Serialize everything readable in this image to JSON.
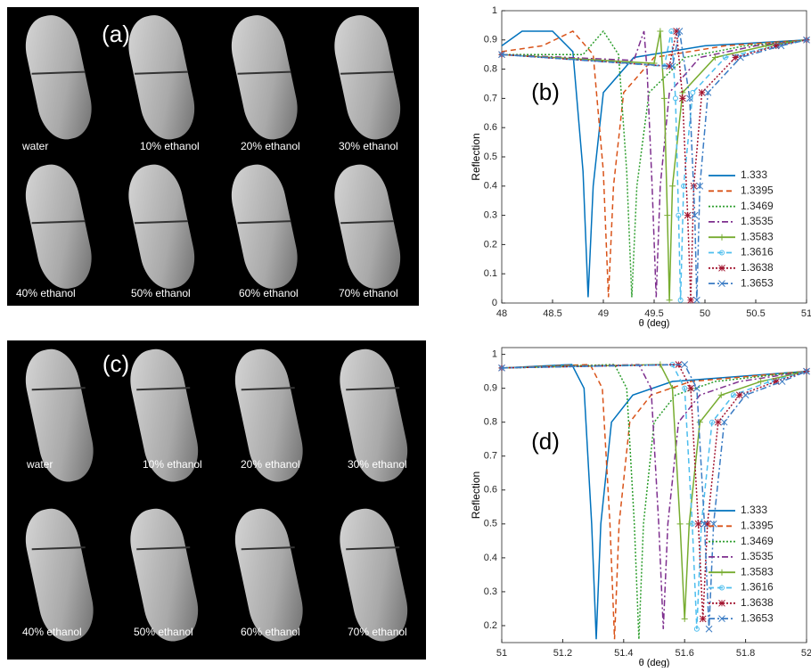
{
  "panels": [
    {
      "label": "(a)",
      "captions": [
        "water",
        "10% ethanol",
        "20% ethanol",
        "30% ethanol",
        "40% ethanol",
        "50% ethanol",
        "60% ethanol",
        "70% ethanol"
      ]
    },
    {
      "label": "(c)",
      "captions": [
        "water",
        "10% ethanol",
        "20% ethanol",
        "30% ethanol",
        "40% ethanol",
        "50% ethanol",
        "60% ethanol",
        "70% ethanol"
      ]
    }
  ],
  "chart_data": [
    {
      "type": "line",
      "label": "(b)",
      "xlabel": "θ (deg)",
      "ylabel": "Reflection",
      "xlim": [
        48,
        51
      ],
      "ylim": [
        0,
        1
      ],
      "xticks": [
        48,
        48.5,
        49,
        49.5,
        50,
        50.5,
        51
      ],
      "yticks": [
        0,
        0.1,
        0.2,
        0.3,
        0.4,
        0.5,
        0.6,
        0.7,
        0.8,
        0.9,
        1
      ],
      "legend_position": "lower right",
      "series": [
        {
          "name": "1.333",
          "color": "#0072bd",
          "linestyle": "-",
          "x": [
            48,
            48.2,
            48.5,
            48.7,
            48.8,
            48.85,
            48.9,
            49,
            49.3,
            50,
            51
          ],
          "values": [
            0.88,
            0.93,
            0.93,
            0.86,
            0.45,
            0.02,
            0.4,
            0.72,
            0.84,
            0.88,
            0.9
          ]
        },
        {
          "name": "1.3395",
          "color": "#d95319",
          "linestyle": "--",
          "x": [
            48,
            48.4,
            48.7,
            48.9,
            49.0,
            49.05,
            49.1,
            49.2,
            49.5,
            50.2,
            51
          ],
          "values": [
            0.86,
            0.88,
            0.93,
            0.85,
            0.45,
            0.02,
            0.4,
            0.72,
            0.84,
            0.88,
            0.9
          ]
        },
        {
          "name": "1.3469",
          "color": "#2e9e2e",
          "linestyle": ":",
          "x": [
            48,
            48.8,
            49.0,
            49.15,
            49.23,
            49.28,
            49.33,
            49.45,
            49.8,
            50.4,
            51
          ],
          "values": [
            0.85,
            0.85,
            0.93,
            0.85,
            0.45,
            0.02,
            0.4,
            0.72,
            0.84,
            0.88,
            0.9
          ]
        },
        {
          "name": "1.3535",
          "color": "#7e2f8e",
          "linestyle": "-.",
          "x": [
            48,
            49.3,
            49.4,
            49.43,
            49.48,
            49.52,
            49.56,
            49.65,
            49.95,
            50.5,
            51
          ],
          "values": [
            0.85,
            0.83,
            0.93,
            0.8,
            0.4,
            0.02,
            0.4,
            0.72,
            0.84,
            0.88,
            0.9
          ]
        },
        {
          "name": "1.3583",
          "color": "#77ac30",
          "linestyle": "-",
          "marker": "+",
          "x": [
            48,
            49.5,
            49.56,
            49.6,
            49.63,
            49.65,
            49.68,
            49.78,
            50.1,
            50.6,
            51
          ],
          "values": [
            0.85,
            0.82,
            0.93,
            0.7,
            0.3,
            0.01,
            0.4,
            0.72,
            0.84,
            0.88,
            0.9
          ]
        },
        {
          "name": "1.3616",
          "color": "#4dbeee",
          "linestyle": "--",
          "marker": "o",
          "x": [
            48,
            49.6,
            49.67,
            49.71,
            49.74,
            49.76,
            49.79,
            49.88,
            50.2,
            50.7,
            51
          ],
          "values": [
            0.85,
            0.81,
            0.93,
            0.7,
            0.3,
            0.01,
            0.4,
            0.72,
            0.84,
            0.88,
            0.9
          ]
        },
        {
          "name": "1.3638",
          "color": "#a2142f",
          "linestyle": ":",
          "marker": "*",
          "x": [
            48,
            49.65,
            49.72,
            49.78,
            49.83,
            49.86,
            49.89,
            49.97,
            50.3,
            50.7,
            51
          ],
          "values": [
            0.85,
            0.81,
            0.93,
            0.7,
            0.3,
            0.01,
            0.4,
            0.72,
            0.84,
            0.88,
            0.9
          ]
        },
        {
          "name": "1.3653",
          "color": "#3b7cc4",
          "linestyle": "-.",
          "marker": "x",
          "x": [
            48,
            49.68,
            49.75,
            49.85,
            49.9,
            49.92,
            49.95,
            50.03,
            50.35,
            50.75,
            51
          ],
          "values": [
            0.85,
            0.81,
            0.93,
            0.7,
            0.3,
            0.01,
            0.4,
            0.72,
            0.84,
            0.88,
            0.9
          ]
        }
      ]
    },
    {
      "type": "line",
      "label": "(d)",
      "xlabel": "θ (deg)",
      "ylabel": "Reflection",
      "xlim": [
        51,
        52
      ],
      "ylim": [
        0.15,
        1.02
      ],
      "xticks": [
        51,
        51.2,
        51.4,
        51.6,
        51.8,
        52
      ],
      "yticks": [
        0.2,
        0.3,
        0.4,
        0.5,
        0.6,
        0.7,
        0.8,
        0.9,
        1
      ],
      "legend_position": "lower right",
      "series": [
        {
          "name": "1.333",
          "color": "#0072bd",
          "linestyle": "-",
          "x": [
            51,
            51.23,
            51.27,
            51.295,
            51.31,
            51.325,
            51.36,
            51.43,
            51.56,
            52
          ],
          "values": [
            0.96,
            0.97,
            0.9,
            0.5,
            0.16,
            0.5,
            0.8,
            0.88,
            0.92,
            0.95
          ]
        },
        {
          "name": "1.3395",
          "color": "#d95319",
          "linestyle": "--",
          "x": [
            51,
            51.29,
            51.33,
            51.355,
            51.37,
            51.385,
            51.42,
            51.49,
            51.62,
            52
          ],
          "values": [
            0.96,
            0.97,
            0.9,
            0.5,
            0.16,
            0.5,
            0.8,
            0.88,
            0.92,
            0.95
          ]
        },
        {
          "name": "1.3469",
          "color": "#2e9e2e",
          "linestyle": ":",
          "x": [
            51,
            51.37,
            51.41,
            51.435,
            51.45,
            51.465,
            51.5,
            51.57,
            51.7,
            52
          ],
          "values": [
            0.96,
            0.97,
            0.9,
            0.5,
            0.16,
            0.5,
            0.8,
            0.88,
            0.92,
            0.95
          ]
        },
        {
          "name": "1.3535",
          "color": "#7e2f8e",
          "linestyle": "-.",
          "x": [
            51,
            51.45,
            51.49,
            51.515,
            51.53,
            51.545,
            51.58,
            51.65,
            51.78,
            52
          ],
          "values": [
            0.96,
            0.97,
            0.9,
            0.5,
            0.19,
            0.5,
            0.8,
            0.88,
            0.92,
            0.95
          ]
        },
        {
          "name": "1.3583",
          "color": "#77ac30",
          "linestyle": "-",
          "marker": "+",
          "x": [
            51,
            51.52,
            51.56,
            51.585,
            51.6,
            51.615,
            51.65,
            51.72,
            51.85,
            52
          ],
          "values": [
            0.96,
            0.97,
            0.9,
            0.5,
            0.22,
            0.5,
            0.8,
            0.88,
            0.92,
            0.95
          ]
        },
        {
          "name": "1.3616",
          "color": "#4dbeee",
          "linestyle": "--",
          "marker": "o",
          "x": [
            51,
            51.56,
            51.6,
            51.625,
            51.64,
            51.655,
            51.69,
            51.76,
            51.88,
            52
          ],
          "values": [
            0.96,
            0.97,
            0.9,
            0.5,
            0.19,
            0.5,
            0.8,
            0.88,
            0.92,
            0.95
          ]
        },
        {
          "name": "1.3638",
          "color": "#a2142f",
          "linestyle": ":",
          "marker": "*",
          "x": [
            51,
            51.58,
            51.62,
            51.645,
            51.66,
            51.675,
            51.71,
            51.78,
            51.9,
            52
          ],
          "values": [
            0.96,
            0.97,
            0.9,
            0.5,
            0.22,
            0.5,
            0.8,
            0.88,
            0.92,
            0.95
          ]
        },
        {
          "name": "1.3653",
          "color": "#3b7cc4",
          "linestyle": "-.",
          "marker": "x",
          "x": [
            51,
            51.6,
            51.64,
            51.665,
            51.68,
            51.695,
            51.73,
            51.8,
            51.92,
            52
          ],
          "values": [
            0.96,
            0.97,
            0.9,
            0.5,
            0.19,
            0.5,
            0.8,
            0.88,
            0.92,
            0.95
          ]
        }
      ]
    }
  ]
}
